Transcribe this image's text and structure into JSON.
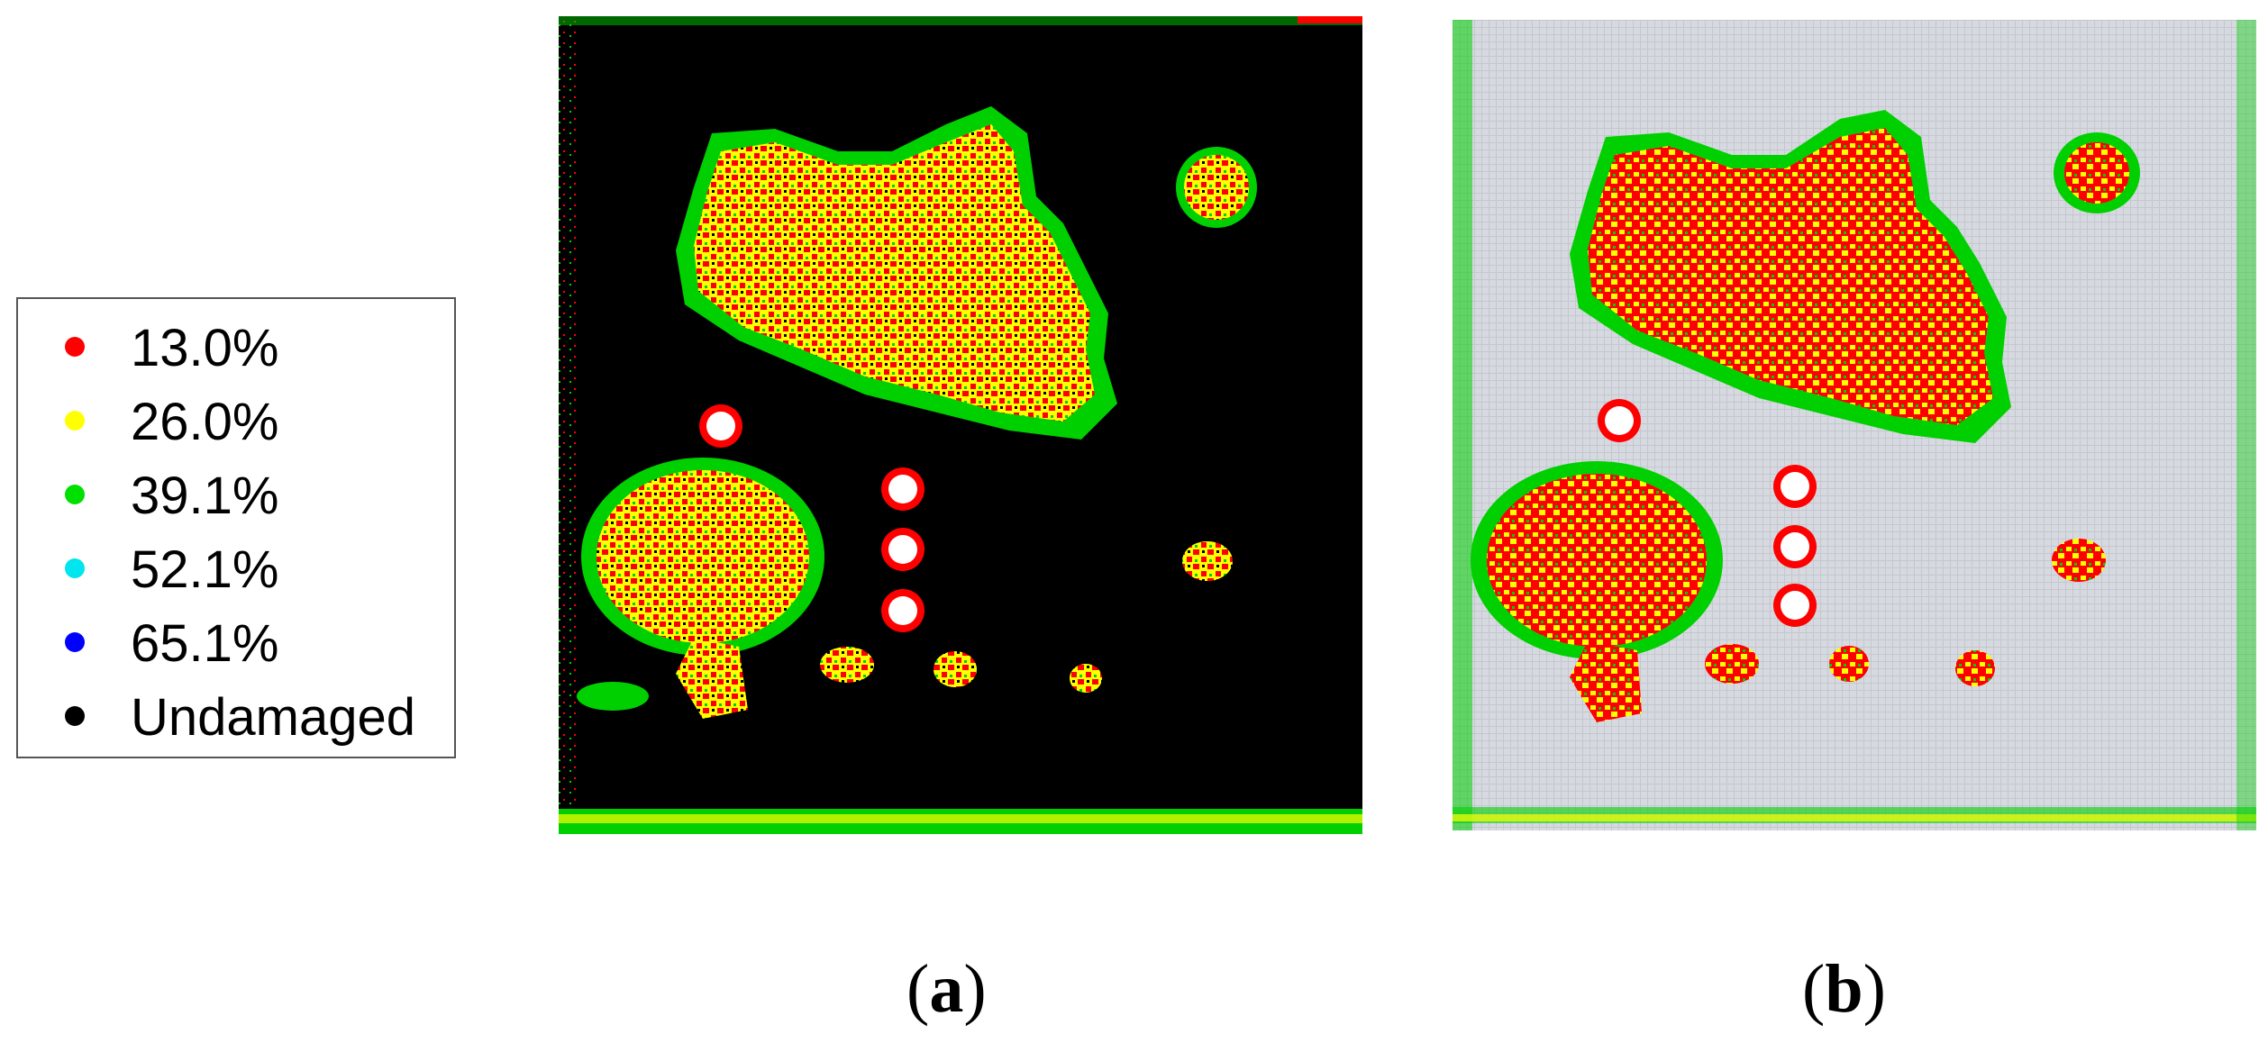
{
  "colors": {
    "level_13": "#ff0000",
    "level_26": "#ffff00",
    "level_39": "#00e000",
    "level_52": "#00e5ee",
    "level_65": "#0000ff",
    "undamaged": "#000000",
    "hole_ring": "#ff0000",
    "hole_center": "#ffffff",
    "panel_a_background": "#000000",
    "panel_b_background": "#d6d9e0"
  },
  "legend": {
    "items": [
      {
        "label": "13.0%",
        "color": "#ff0000"
      },
      {
        "label": "26.0%",
        "color": "#ffff00"
      },
      {
        "label": "39.1%",
        "color": "#00e000"
      },
      {
        "label": "52.1%",
        "color": "#00e5ee"
      },
      {
        "label": "65.1%",
        "color": "#0000ff"
      },
      {
        "label": "Undamaged",
        "color": "#000000"
      }
    ]
  },
  "panels": [
    {
      "caption_open": "(",
      "caption_letter": "a",
      "caption_close": ")",
      "background": "undamaged-black"
    },
    {
      "caption_open": "(",
      "caption_letter": "b",
      "caption_close": ")",
      "background": "grey-specimen"
    }
  ]
}
